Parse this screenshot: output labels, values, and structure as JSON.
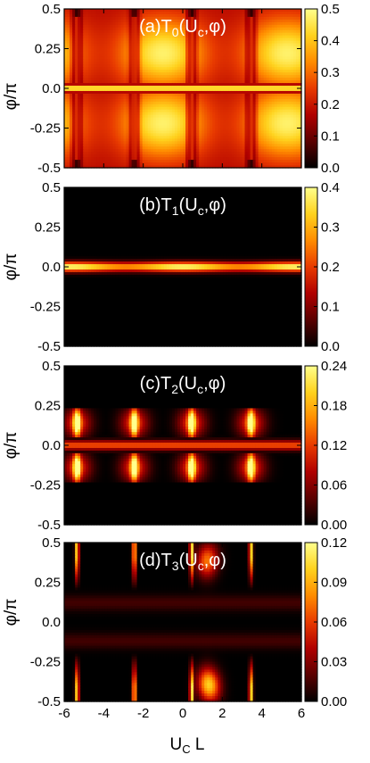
{
  "figure": {
    "xlabel_main": "U",
    "xlabel_sub": "C",
    "xlabel_tail": " L",
    "ylabel": "φ/π"
  },
  "chart_data": [
    {
      "type": "heatmap",
      "title_parts": [
        "(a)T",
        "0",
        "(U",
        "c",
        ",φ)"
      ],
      "xlabel": "U_C L",
      "ylabel": "φ/π",
      "xlim": [
        -6,
        6
      ],
      "ylim": [
        -0.5,
        0.5
      ],
      "x_ticks": [],
      "x_tick_labels": [],
      "y_ticks": [
        0.5,
        0.25,
        0.0,
        -0.25,
        -0.5
      ],
      "y_tick_labels": [
        "0.5",
        "0.25",
        "0.0",
        "-0.25",
        "-0.5"
      ],
      "colorbar": {
        "min": 0.0,
        "max": 0.5,
        "ticks": [
          0.5,
          0.4,
          0.3,
          0.2,
          0.1,
          0.0
        ],
        "tick_labels": [
          "0.5",
          "0.4",
          "0.3",
          "0.2",
          "0.1",
          "0.0"
        ],
        "colormap": [
          "#000000",
          "#5a0000",
          "#b00000",
          "#e83a00",
          "#ff8c00",
          "#ffd21e",
          "#ffff8c"
        ]
      }
    },
    {
      "type": "heatmap",
      "title_parts": [
        "(b)T",
        "1",
        "(U",
        "c",
        ",φ)"
      ],
      "xlabel": "U_C L",
      "ylabel": "φ/π",
      "xlim": [
        -6,
        6
      ],
      "ylim": [
        -0.5,
        0.5
      ],
      "x_ticks": [],
      "x_tick_labels": [],
      "y_ticks": [
        0.5,
        0.25,
        0.0,
        -0.25,
        -0.5
      ],
      "y_tick_labels": [
        "0.5",
        "0.25",
        "0.0",
        "-0.25",
        "-0.5"
      ],
      "colorbar": {
        "min": 0.0,
        "max": 0.4,
        "ticks": [
          0.4,
          0.3,
          0.2,
          0.1,
          0.0
        ],
        "tick_labels": [
          "0.4",
          "0.3",
          "0.2",
          "0.1",
          "0.0"
        ],
        "colormap": [
          "#000000",
          "#5a0000",
          "#b00000",
          "#e83a00",
          "#ff8c00",
          "#ffd21e",
          "#ffff8c"
        ]
      }
    },
    {
      "type": "heatmap",
      "title_parts": [
        "(c)T",
        "2",
        "(U",
        "c",
        ",φ)"
      ],
      "xlabel": "U_C L",
      "ylabel": "φ/π",
      "xlim": [
        -6,
        6
      ],
      "ylim": [
        -0.5,
        0.5
      ],
      "x_ticks": [],
      "x_tick_labels": [],
      "y_ticks": [
        0.5,
        0.25,
        0.0,
        -0.25,
        -0.5
      ],
      "y_tick_labels": [
        "0.5",
        "0.25",
        "0.0",
        "-0.25",
        "-0.5"
      ],
      "colorbar": {
        "min": 0.0,
        "max": 0.24,
        "ticks": [
          0.24,
          0.18,
          0.12,
          0.06,
          0.0
        ],
        "tick_labels": [
          "0.24",
          "0.18",
          "0.12",
          "0.06",
          "0.00"
        ],
        "colormap": [
          "#000000",
          "#5a0000",
          "#b00000",
          "#e83a00",
          "#ff8c00",
          "#ffd21e",
          "#ffff8c"
        ]
      }
    },
    {
      "type": "heatmap",
      "title_parts": [
        "(d)T",
        "3",
        "(U",
        "c",
        ",φ)"
      ],
      "xlabel": "U_C L",
      "ylabel": "φ/π",
      "xlim": [
        -6,
        6
      ],
      "ylim": [
        -0.5,
        0.5
      ],
      "x_ticks": [
        -6,
        -4,
        -2,
        0,
        2,
        4,
        6
      ],
      "x_tick_labels": [
        "-6",
        "-4",
        "-2",
        "0",
        "2",
        "4",
        "6"
      ],
      "y_ticks": [
        0.5,
        0.25,
        0.0,
        -0.25,
        -0.5
      ],
      "y_tick_labels": [
        "0.5",
        "0.25",
        "0.0",
        "-0.25",
        "-0.5"
      ],
      "colorbar": {
        "min": 0.0,
        "max": 0.12,
        "ticks": [
          0.12,
          0.09,
          0.06,
          0.03,
          0.0
        ],
        "tick_labels": [
          "0.12",
          "0.09",
          "0.06",
          "0.03",
          "0.00"
        ],
        "colormap": [
          "#000000",
          "#5a0000",
          "#b00000",
          "#e83a00",
          "#ff8c00",
          "#ffd21e",
          "#ffff8c"
        ]
      }
    }
  ]
}
